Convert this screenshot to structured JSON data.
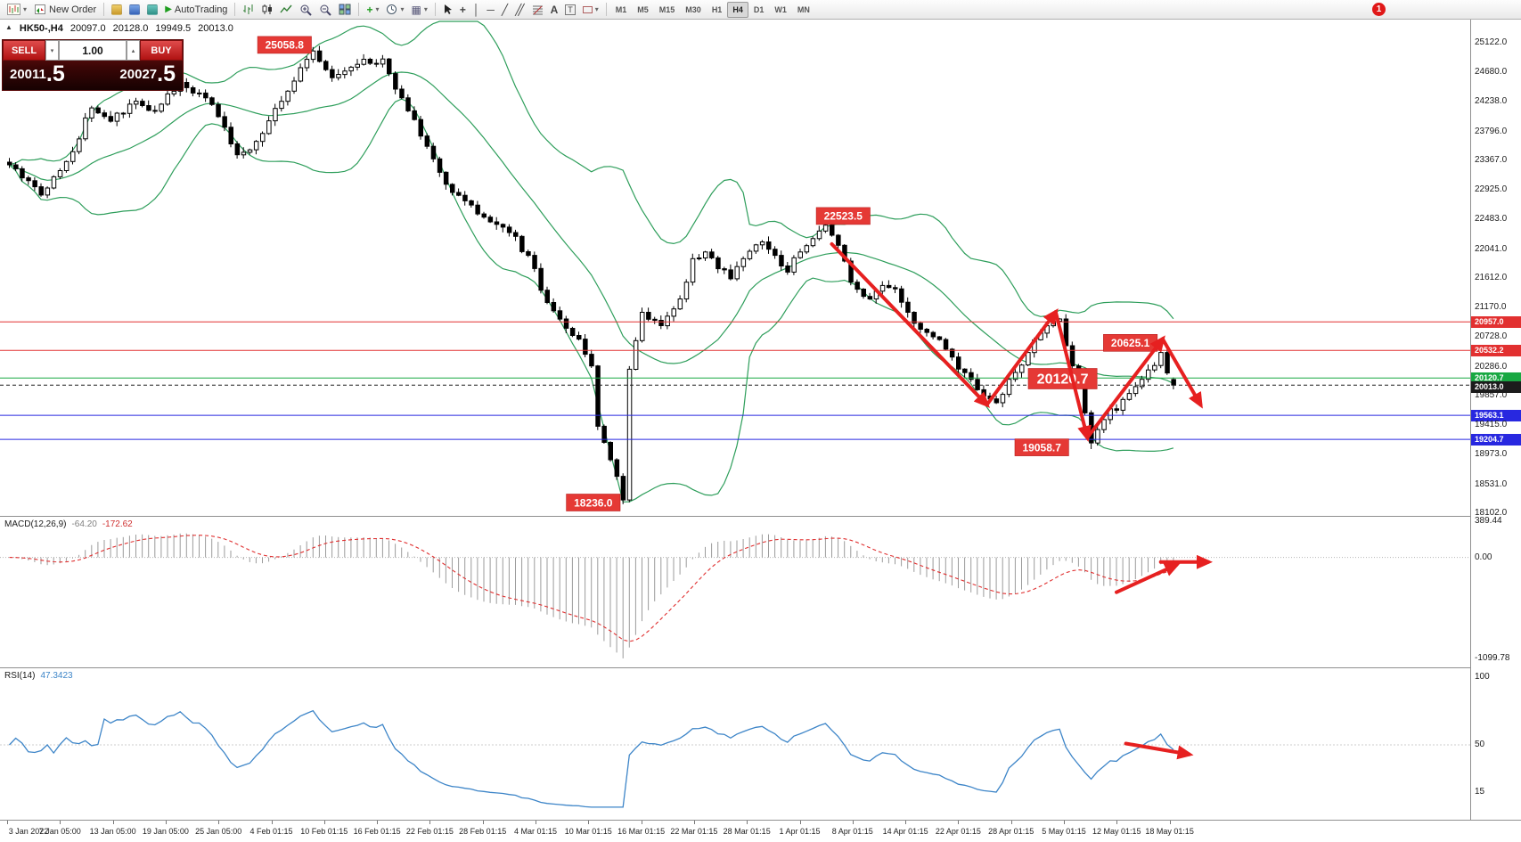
{
  "window": {
    "notification_badge": "1"
  },
  "toolbar": {
    "new_order_label": "New Order",
    "autotrading_label": "AutoTrading",
    "text_tool_label": "A",
    "label_tool_letter": "T",
    "timeframes": [
      "M1",
      "M5",
      "M15",
      "M30",
      "H1",
      "H4",
      "D1",
      "W1",
      "MN"
    ],
    "active_timeframe": "H4"
  },
  "symbol_bar": {
    "collapse_icon": "▲",
    "symbol": "HK50-,H4",
    "open": "20097.0",
    "high": "20128.0",
    "low": "19949.5",
    "close": "20013.0"
  },
  "trade_panel": {
    "sell_label": "SELL",
    "buy_label": "BUY",
    "volume": "1.00",
    "spin_down": "▾",
    "spin_up": "▴",
    "sell_price_main": "20011",
    "sell_price_big": ".5",
    "buy_price_main": "20027",
    "buy_price_big": ".5"
  },
  "indicators": {
    "macd_name": "MACD(12,26,9)",
    "macd_value_main": "-64.20",
    "macd_value_signal": "-172.62",
    "rsi_name": "RSI(14)",
    "rsi_value": "47.3423"
  },
  "price_axis": {
    "ticks": [
      {
        "value": 25122.0,
        "label": "25122.0"
      },
      {
        "value": 24680.0,
        "label": "24680.0"
      },
      {
        "value": 24238.0,
        "label": "24238.0"
      },
      {
        "value": 23796.0,
        "label": "23796.0"
      },
      {
        "value": 23367.0,
        "label": "23367.0"
      },
      {
        "value": 22925.0,
        "label": "22925.0"
      },
      {
        "value": 22483.0,
        "label": "22483.0"
      },
      {
        "value": 22041.0,
        "label": "22041.0"
      },
      {
        "value": 21612.0,
        "label": "21612.0"
      },
      {
        "value": 21170.0,
        "label": "21170.0"
      },
      {
        "value": 20728.0,
        "label": "20728.0"
      },
      {
        "value": 20286.0,
        "label": "20286.0"
      },
      {
        "value": 19857.0,
        "label": "19857.0"
      },
      {
        "value": 19415.0,
        "label": "19415.0"
      },
      {
        "value": 18973.0,
        "label": "18973.0"
      },
      {
        "value": 18531.0,
        "label": "18531.0"
      },
      {
        "value": 18102.0,
        "label": "18102.0"
      }
    ]
  },
  "macd_axis": {
    "ticks": [
      {
        "value": 389.44,
        "label": "389.44"
      },
      {
        "value": 0,
        "label": "0.00"
      },
      {
        "value": -1099.78,
        "label": "-1099.78"
      }
    ]
  },
  "rsi_axis": {
    "ticks": [
      {
        "value": 100,
        "label": "100"
      },
      {
        "value": 50,
        "label": "50"
      },
      {
        "value": 15,
        "label": "15"
      }
    ]
  },
  "time_axis": {
    "labels": [
      "3 Jan 2022",
      "7 Jan 05:00",
      "13 Jan 05:00",
      "19 Jan 05:00",
      "25 Jan 05:00",
      "4 Feb 01:15",
      "10 Feb 01:15",
      "16 Feb 01:15",
      "22 Feb 01:15",
      "28 Feb 01:15",
      "4 Mar 01:15",
      "10 Mar 01:15",
      "16 Mar 01:15",
      "22 Mar 01:15",
      "28 Mar 01:15",
      "1 Apr 01:15",
      "8 Apr 01:15",
      "14 Apr 01:15",
      "22 Apr 01:15",
      "28 Apr 01:15",
      "5 May 01:15",
      "12 May 01:15",
      "18 May 01:15"
    ]
  },
  "levels": [
    {
      "price": 20957.0,
      "label": "20957.0",
      "color": "#e23030",
      "style": "solid",
      "type": "resistance-line"
    },
    {
      "price": 20532.2,
      "label": "20532.2",
      "color": "#e23030",
      "style": "solid",
      "type": "resistance-line"
    },
    {
      "price": 20120.7,
      "label": "20120.7",
      "color": "#18a842",
      "style": "solid",
      "type": "pivot-line"
    },
    {
      "price": 20013.0,
      "label": "20013.0",
      "color": "#1c1c1c",
      "style": "dashed",
      "type": "current-price"
    },
    {
      "price": 19563.1,
      "label": "19563.1",
      "color": "#2828e0",
      "style": "solid",
      "type": "support-line"
    },
    {
      "price": 19204.7,
      "label": "19204.7",
      "color": "#2828e0",
      "style": "solid",
      "type": "support-line"
    }
  ],
  "callouts": [
    {
      "text": "25058.8",
      "i": 43.5,
      "price": 25090,
      "size": 12
    },
    {
      "text": "22523.5",
      "i": 131.8,
      "price": 22537,
      "size": 12
    },
    {
      "text": "20625.1",
      "i": 177.2,
      "price": 20644,
      "size": 12
    },
    {
      "text": "20120.7",
      "i": 166.5,
      "price": 20110,
      "size": 16
    },
    {
      "text": "19058.7",
      "i": 163.2,
      "price": 19084,
      "size": 12
    },
    {
      "text": "18236.0",
      "i": 92.3,
      "price": 18261,
      "size": 12
    }
  ],
  "arrows": {
    "price": [
      {
        "from": [
          130,
          22118
        ],
        "to": [
          154.5,
          19720
        ]
      },
      {
        "from": [
          154.5,
          19720
        ],
        "to": [
          165.4,
          21106
        ]
      },
      {
        "from": [
          165.4,
          21106
        ],
        "to": [
          170.4,
          19229
        ]
      },
      {
        "from": [
          170.4,
          19229
        ],
        "to": [
          182.3,
          20702
        ]
      },
      {
        "from": [
          182.3,
          20702
        ],
        "to": [
          188.3,
          19720
        ]
      }
    ],
    "macd": [
      {
        "from": [
          175,
          -380
        ],
        "to": [
          184.5,
          -80
        ]
      },
      {
        "from": [
          182,
          -50
        ],
        "to": [
          189.5,
          -50
        ]
      }
    ],
    "rsi": [
      {
        "from": [
          176.5,
          51
        ],
        "to": [
          186.5,
          43
        ]
      }
    ]
  },
  "chart_data": {
    "type": "candlestick",
    "symbol": "HK50-",
    "timeframe": "H4",
    "ohlc_current": {
      "open": 20097.0,
      "high": 20128.0,
      "low": 19949.5,
      "close": 20013.0
    },
    "bid": "20011.5",
    "ask": "20027.5",
    "price_range": [
      18102,
      25122
    ],
    "candle_count": 185,
    "close_anchors": [
      [
        0,
        23300
      ],
      [
        5,
        22850
      ],
      [
        9,
        23350
      ],
      [
        13,
        24150
      ],
      [
        16,
        23950
      ],
      [
        20,
        24250
      ],
      [
        23,
        24100
      ],
      [
        27,
        24530
      ],
      [
        31,
        24300
      ],
      [
        33,
        24020
      ],
      [
        36,
        23450
      ],
      [
        39,
        23650
      ],
      [
        44,
        24400
      ],
      [
        48,
        25000
      ],
      [
        51,
        24600
      ],
      [
        55,
        24800
      ],
      [
        59,
        24880
      ],
      [
        62,
        24300
      ],
      [
        65,
        23730
      ],
      [
        69,
        23010
      ],
      [
        73,
        22700
      ],
      [
        76,
        22450
      ],
      [
        79,
        22290
      ],
      [
        82,
        21950
      ],
      [
        84,
        21430
      ],
      [
        87,
        21000
      ],
      [
        90,
        20700
      ],
      [
        92,
        20300
      ],
      [
        93,
        19400
      ],
      [
        95,
        18900
      ],
      [
        97,
        18300
      ],
      [
        98,
        20250
      ],
      [
        100,
        21100
      ],
      [
        103,
        20900
      ],
      [
        106,
        21300
      ],
      [
        108,
        21900
      ],
      [
        110,
        22000
      ],
      [
        112,
        21750
      ],
      [
        114,
        21600
      ],
      [
        116,
        21900
      ],
      [
        119,
        22150
      ],
      [
        121,
        21950
      ],
      [
        123,
        21700
      ],
      [
        125,
        22000
      ],
      [
        127,
        22200
      ],
      [
        129,
        22400
      ],
      [
        131,
        22100
      ],
      [
        133,
        21550
      ],
      [
        136,
        21300
      ],
      [
        138,
        21500
      ],
      [
        140,
        21450
      ],
      [
        142,
        21100
      ],
      [
        145,
        20800
      ],
      [
        148,
        20550
      ],
      [
        151,
        20200
      ],
      [
        154,
        19850
      ],
      [
        156,
        19750
      ],
      [
        158,
        20100
      ],
      [
        161,
        20500
      ],
      [
        164,
        20900
      ],
      [
        166,
        21000
      ],
      [
        168,
        20300
      ],
      [
        170,
        19600
      ],
      [
        171,
        19150
      ],
      [
        173,
        19500
      ],
      [
        176,
        19800
      ],
      [
        179,
        20100
      ],
      [
        182,
        20500
      ],
      [
        184,
        20013
      ]
    ],
    "extremes": {
      "48": {
        "h": 25058.8
      },
      "97": {
        "l": 18236.0
      },
      "129": {
        "h": 22523.5
      },
      "171": {
        "l": 19058.7
      },
      "182": {
        "h": 20625.1
      },
      "184": {
        "o": 20097.0,
        "h": 20128.0,
        "l": 19949.5,
        "c": 20013.0
      }
    },
    "overlays": {
      "bollinger_bands": {
        "period": 20,
        "deviation": 2,
        "color": "#2e9e5b"
      }
    },
    "panes": [
      {
        "name": "MACD",
        "params": "12,26,9",
        "values": [
          -64.2,
          -172.62
        ],
        "axis_range": [
          -1099.78,
          389.44
        ]
      },
      {
        "name": "RSI",
        "params": "14",
        "value": 47.3423,
        "axis_ticks": [
          100,
          50,
          15
        ]
      }
    ],
    "key_levels": [
      20957.0,
      20532.2,
      20120.7,
      19563.1,
      19204.7
    ],
    "annotations": [
      "25058.8",
      "22523.5",
      "20625.1",
      "20120.7",
      "19058.7",
      "18236.0"
    ],
    "styles": {
      "bull_candle": "#ffffff",
      "bear_candle": "#000000",
      "candle_outline": "#000000",
      "bollinger": "#2e9e5b",
      "macd_histogram": "#9b9b9b",
      "macd_signal": "#e03030",
      "rsi_line": "#3d85c8",
      "trend_arrow": "#e62020",
      "callout_bg": "#e53935",
      "callout_border": "#b71c1c"
    }
  }
}
